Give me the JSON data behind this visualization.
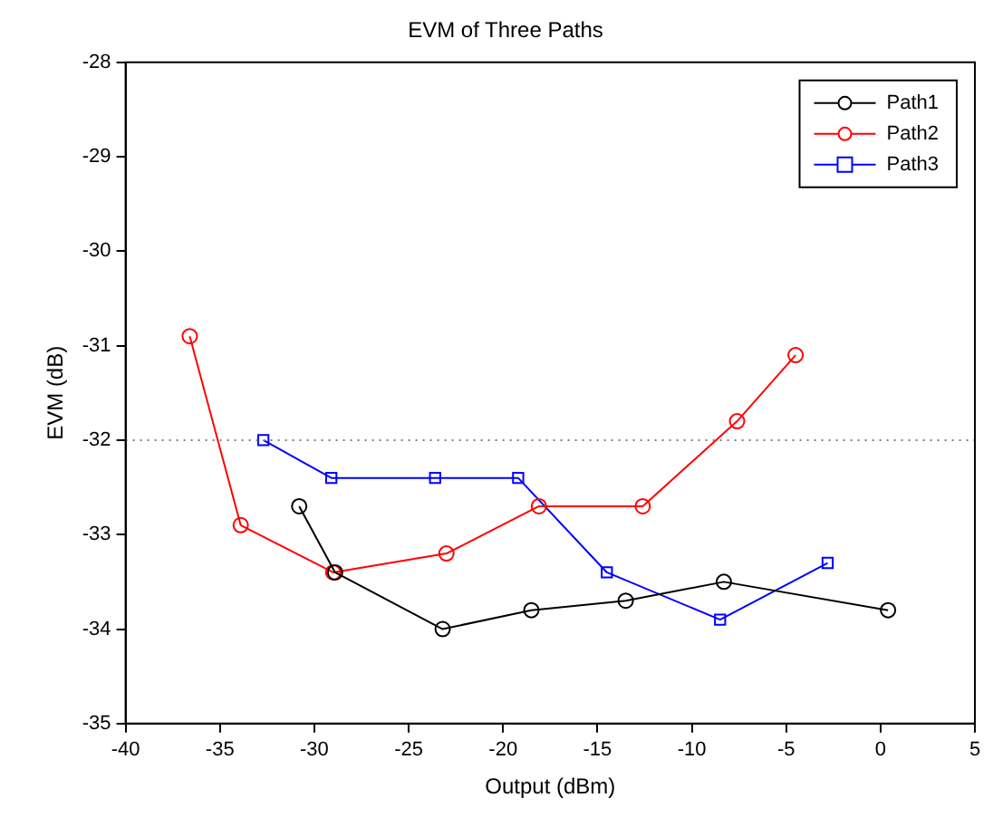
{
  "chart_data": {
    "type": "line",
    "title": "EVM of Three Paths",
    "xlabel": "Output (dBm)",
    "ylabel": "EVM (dB)",
    "xlim": [
      -40,
      5
    ],
    "xticks": [
      -40,
      -35,
      -30,
      -25,
      -20,
      -15,
      -10,
      -5,
      0,
      5
    ],
    "ylim": [
      -35,
      -28
    ],
    "yticks": [
      -35,
      -34,
      -33,
      -32,
      -31,
      -30,
      -29,
      -28
    ],
    "grid": false,
    "legend": "top right",
    "line_style": "solid",
    "ref_lines": [
      {
        "axis": "y",
        "value": -32,
        "color": "#808080",
        "line_style": "dotted"
      }
    ],
    "series": [
      {
        "name": "Path1",
        "color": "#000000",
        "marker": "circle",
        "x": [
          -30.8,
          -28.9,
          -23.2,
          -18.5,
          -13.5,
          -8.3,
          0.4
        ],
        "values": [
          -32.7,
          -33.4,
          -34.0,
          -33.8,
          -33.7,
          -33.5,
          -33.8
        ]
      },
      {
        "name": "Path2",
        "color": "#ff0000",
        "marker": "circle",
        "x": [
          -36.6,
          -33.9,
          -29.0,
          -23.0,
          -18.1,
          -12.6,
          -7.6,
          -4.5
        ],
        "values": [
          -30.9,
          -32.9,
          -33.4,
          -33.2,
          -32.7,
          -32.7,
          -31.8,
          -31.1
        ]
      },
      {
        "name": "Path3",
        "color": "#0000ff",
        "marker": "square",
        "x": [
          -32.7,
          -29.1,
          -23.6,
          -19.2,
          -14.5,
          -8.5,
          -2.8
        ],
        "values": [
          -32.0,
          -32.4,
          -32.4,
          -32.4,
          -33.4,
          -33.9,
          -33.3
        ]
      }
    ]
  }
}
